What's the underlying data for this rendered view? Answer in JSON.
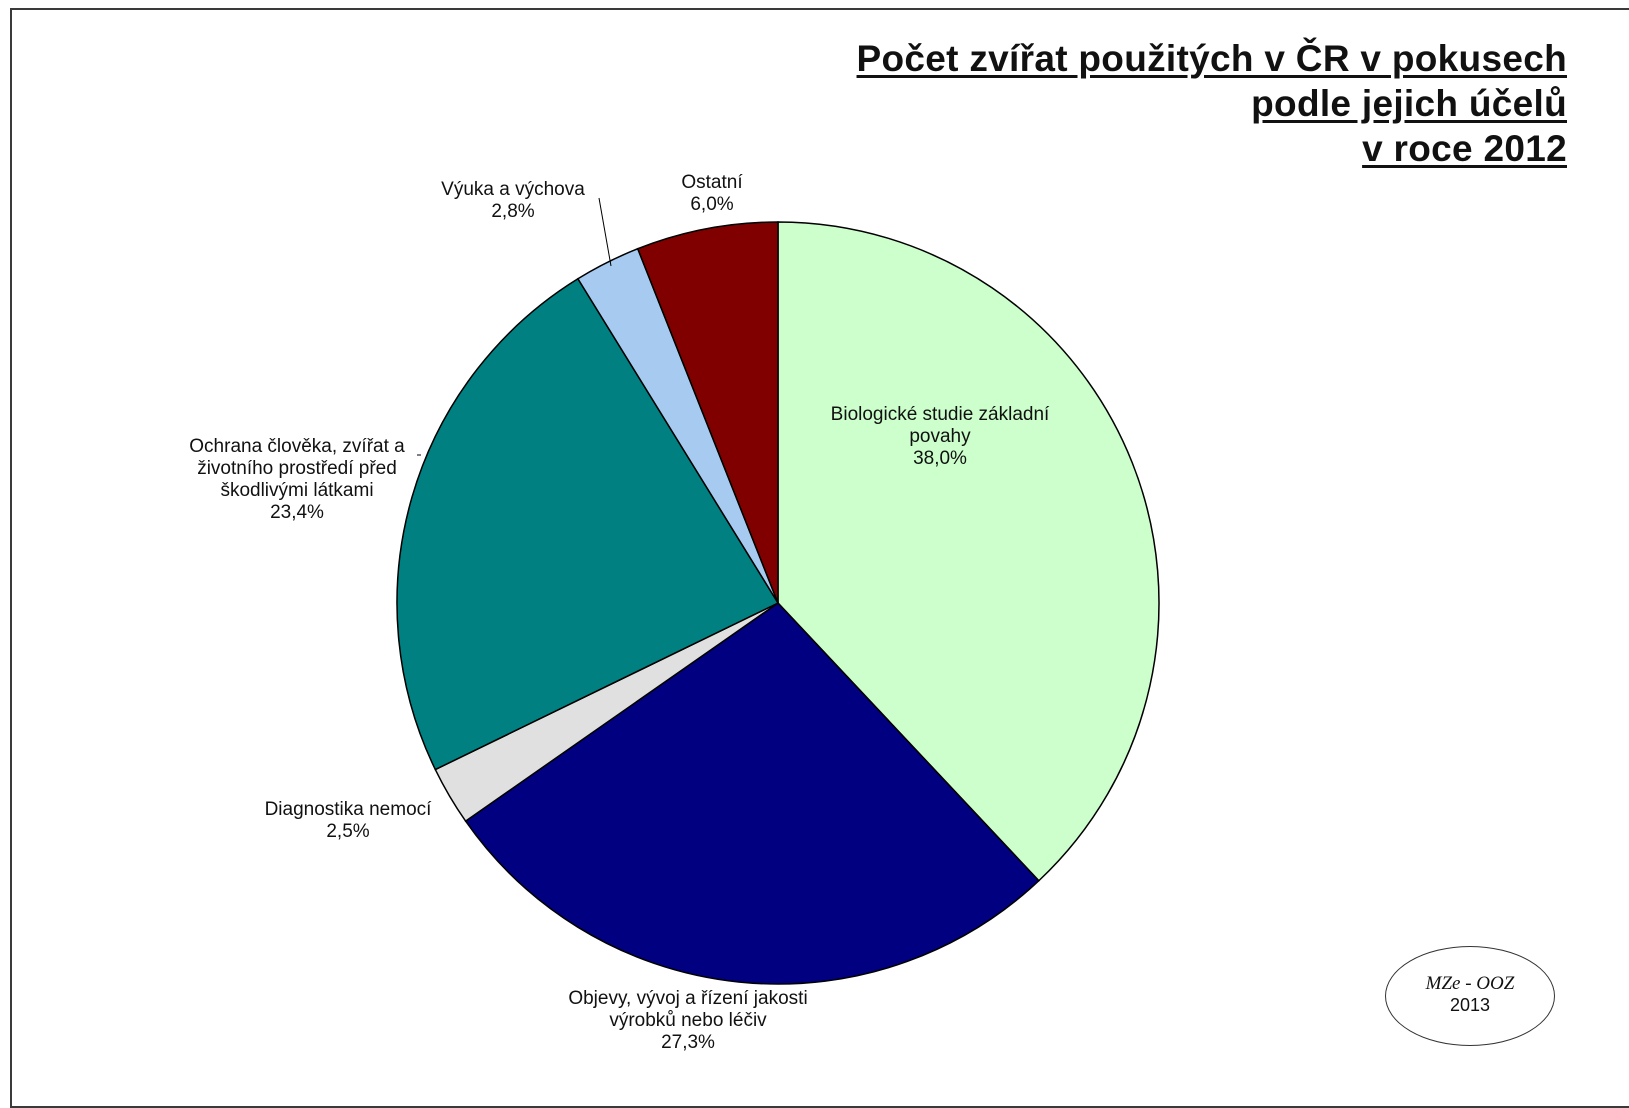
{
  "title_lines": [
    "Počet zvířat použitých v ČR v pokusech",
    "podle jejich účelů",
    "v roce 2012"
  ],
  "stamp": {
    "line1": "MZe - OOZ",
    "line2": "2013"
  },
  "chart_data": {
    "type": "pie",
    "start_angle_deg": 0,
    "direction": "clockwise",
    "slices": [
      {
        "label_lines": [
          "Biologické studie základní",
          "povahy"
        ],
        "value": 38.0,
        "value_text": "38,0%",
        "color": "#CCFFCC"
      },
      {
        "label_lines": [
          "Objevy, vývoj a řízení jakosti",
          "výrobků nebo léčiv"
        ],
        "value": 27.3,
        "value_text": "27,3%",
        "color": "#000080"
      },
      {
        "label_lines": [
          "Diagnostika nemocí"
        ],
        "value": 2.5,
        "value_text": "2,5%",
        "color": "#E0E0E0"
      },
      {
        "label_lines": [
          "Ochrana člověka, zvířat a",
          "životního prostředí před",
          "škodlivými látkami"
        ],
        "value": 23.4,
        "value_text": "23,4%",
        "color": "#008080"
      },
      {
        "label_lines": [
          "Výuka a výchova"
        ],
        "value": 2.8,
        "value_text": "2,8%",
        "color": "#A6CAF0"
      },
      {
        "label_lines": [
          "Ostatní"
        ],
        "value": 6.0,
        "value_text": "6,0%",
        "color": "#800000"
      }
    ]
  }
}
